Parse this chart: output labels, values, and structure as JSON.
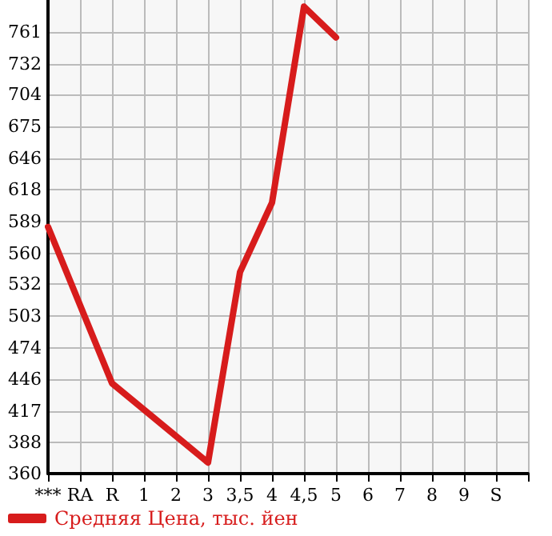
{
  "chart_data": {
    "type": "line",
    "categories": [
      "***",
      "RA",
      "R",
      "1",
      "2",
      "3",
      "3,5",
      "4",
      "4,5",
      "5",
      "6",
      "7",
      "8",
      "9",
      "S",
      null
    ],
    "series": [
      {
        "name": "Средняя Цена, тыс. йен",
        "color": "#d71c1c",
        "values": [
          584,
          513,
          442,
          418,
          394,
          370,
          543,
          606,
          784,
          756,
          null,
          null,
          null,
          null,
          null,
          null
        ]
      }
    ],
    "ylim": [
      360,
      790
    ],
    "yticks": [
      360,
      388,
      417,
      446,
      474,
      503,
      532,
      560,
      589,
      618,
      646,
      675,
      704,
      732,
      761
    ],
    "grid": true,
    "legend": "bottom left",
    "marker": "none",
    "line_style": "solid"
  }
}
